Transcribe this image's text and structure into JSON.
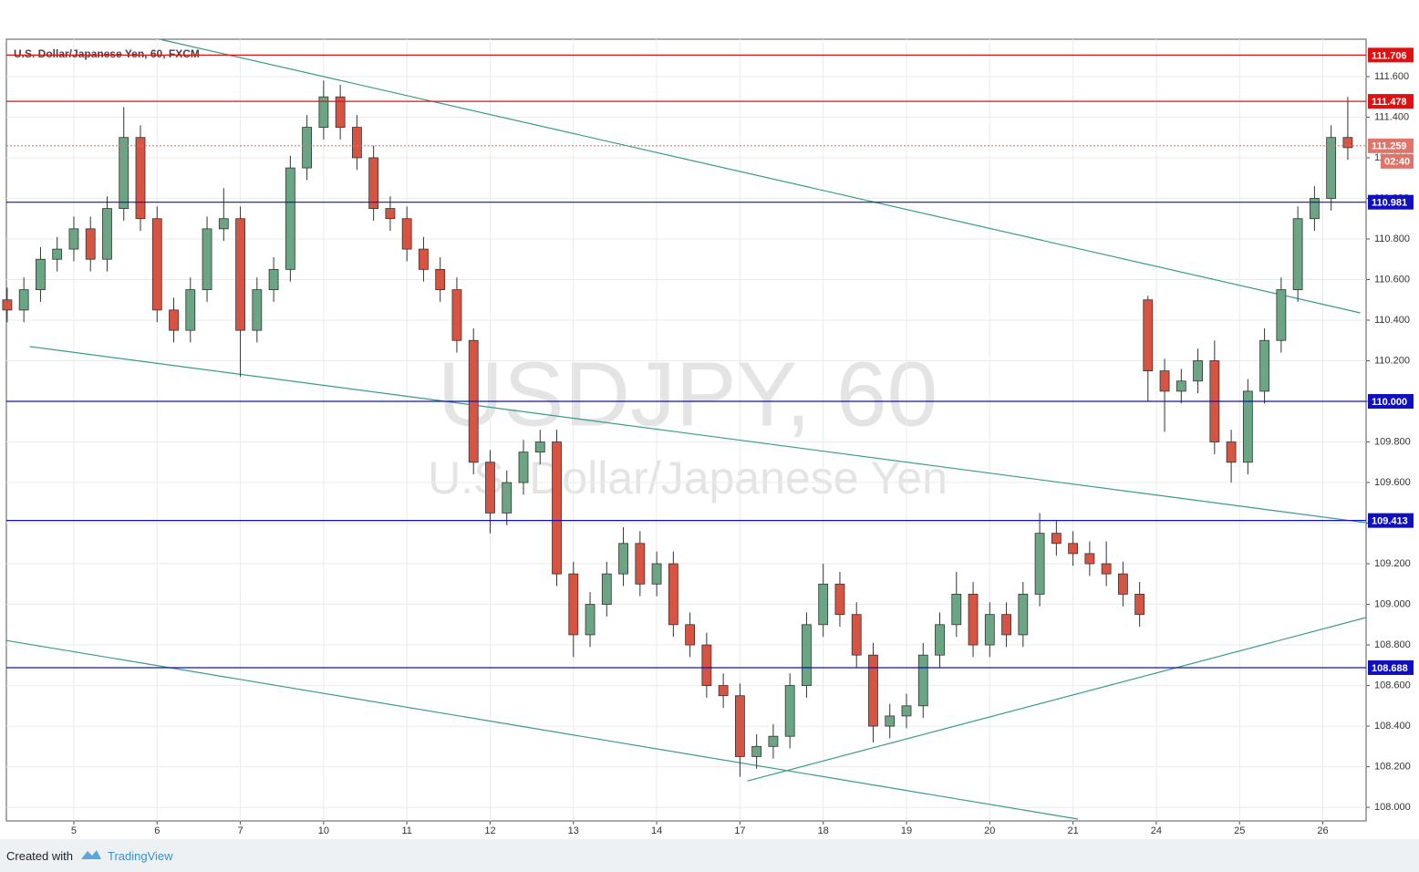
{
  "chart_data": {
    "type": "candlestick",
    "title": "U.S. Dollar/Japanese Yen, 60, FXCM",
    "watermark": "USDJPY, 60",
    "watermark_subtitle": "U.S. Dollar/Japanese Yen",
    "footer_text": "Created with",
    "footer_brand": "TradingView",
    "up_color": "#6ba583",
    "down_color": "#d75442",
    "grid": true,
    "xlim": [
      -0.81,
      15.52
    ],
    "ylim": [
      107.933,
      111.784
    ],
    "xticks": [
      {
        "value": 0,
        "label": "5"
      },
      {
        "value": 1,
        "label": "6"
      },
      {
        "value": 2,
        "label": "7"
      },
      {
        "value": 3,
        "label": "10"
      },
      {
        "value": 4,
        "label": "11"
      },
      {
        "value": 5,
        "label": "12"
      },
      {
        "value": 6,
        "label": "13"
      },
      {
        "value": 7,
        "label": "14"
      },
      {
        "value": 8,
        "label": "17"
      },
      {
        "value": 9,
        "label": "18"
      },
      {
        "value": 10,
        "label": "19"
      },
      {
        "value": 11,
        "label": "20"
      },
      {
        "value": 12,
        "label": "21"
      },
      {
        "value": 13,
        "label": "24"
      },
      {
        "value": 14,
        "label": "25"
      },
      {
        "value": 15,
        "label": "26"
      }
    ],
    "yticks": [
      {
        "value": 108.0,
        "label": "108.000"
      },
      {
        "value": 108.2,
        "label": "108.200"
      },
      {
        "value": 108.4,
        "label": "108.400"
      },
      {
        "value": 108.6,
        "label": "108.600"
      },
      {
        "value": 108.8,
        "label": "108.800"
      },
      {
        "value": 109.0,
        "label": "109.000"
      },
      {
        "value": 109.2,
        "label": "109.200"
      },
      {
        "value": 109.4,
        "label": "109.400"
      },
      {
        "value": 109.6,
        "label": "109.600"
      },
      {
        "value": 109.8,
        "label": "109.800"
      },
      {
        "value": 110.0,
        "label": "110.000"
      },
      {
        "value": 110.2,
        "label": "110.200"
      },
      {
        "value": 110.4,
        "label": "110.400"
      },
      {
        "value": 110.6,
        "label": "110.600"
      },
      {
        "value": 110.8,
        "label": "110.800"
      },
      {
        "value": 111.0,
        "label": "111.000"
      },
      {
        "value": 111.2,
        "label": "111.200"
      },
      {
        "value": 111.4,
        "label": "111.400"
      },
      {
        "value": 111.6,
        "label": "111.600"
      }
    ],
    "levels": [
      {
        "value": 111.706,
        "label": "111.706",
        "color": "#e01010",
        "style": "solid"
      },
      {
        "value": 111.478,
        "label": "111.478",
        "color": "#e01010",
        "style": "solid"
      },
      {
        "value": 111.259,
        "label": "111.259",
        "color": "#e0736a",
        "style": "dotted",
        "countdown": "02:40"
      },
      {
        "value": 110.981,
        "label": "110.981",
        "color": "#1010c0",
        "style": "solid"
      },
      {
        "value": 110.0,
        "label": "110.000",
        "color": "#1010c0",
        "style": "solid"
      },
      {
        "value": 109.413,
        "label": "109.413",
        "color": "#1010c0",
        "style": "solid"
      },
      {
        "value": 108.688,
        "label": "108.688",
        "color": "#1010c0",
        "style": "solid"
      }
    ],
    "trendlines": [
      {
        "x": [
          1.03,
          15.45
        ],
        "y": [
          111.784,
          110.436
        ],
        "color": "#3a9a8a"
      },
      {
        "x": [
          -0.53,
          15.52
        ],
        "y": [
          110.27,
          109.402
        ],
        "color": "#3a9a8a"
      },
      {
        "x": [
          -0.81,
          12.06
        ],
        "y": [
          108.822,
          107.942
        ],
        "color": "#3a9a8a"
      },
      {
        "x": [
          8.09,
          15.52
        ],
        "y": [
          108.13,
          108.935
        ],
        "color": "#3a9a8a"
      }
    ],
    "candles": {
      "x": [
        -0.8,
        -0.6,
        -0.4,
        -0.2,
        0,
        0.2,
        0.4,
        0.6,
        0.8,
        1,
        1.2,
        1.4,
        1.6,
        1.8,
        2,
        2.2,
        2.4,
        2.6,
        2.8,
        3,
        3.2,
        3.4,
        3.6,
        3.8,
        4,
        4.2,
        4.4,
        4.6,
        4.8,
        5,
        5.2,
        5.4,
        5.6,
        5.8,
        6,
        6.2,
        6.4,
        6.6,
        6.8,
        7,
        7.2,
        7.4,
        7.6,
        7.8,
        8,
        8.2,
        8.4,
        8.6,
        8.8,
        9,
        9.2,
        9.4,
        9.6,
        9.8,
        10,
        10.2,
        10.4,
        10.6,
        10.8,
        11,
        11.2,
        11.4,
        11.6,
        11.8,
        12,
        12.2,
        12.4,
        12.6,
        12.8,
        12.9,
        13.1,
        13.3,
        13.5,
        13.7,
        13.9,
        14.1,
        14.3,
        14.5,
        14.7,
        14.9,
        15.1,
        15.3
      ],
      "open": [
        110.5,
        110.45,
        110.55,
        110.7,
        110.75,
        110.85,
        110.7,
        110.95,
        111.3,
        110.9,
        110.45,
        110.35,
        110.55,
        110.85,
        110.9,
        110.35,
        110.55,
        110.65,
        111.15,
        111.35,
        111.5,
        111.35,
        111.2,
        110.95,
        110.9,
        110.75,
        110.65,
        110.55,
        110.3,
        109.7,
        109.45,
        109.6,
        109.75,
        109.8,
        109.15,
        108.85,
        109.0,
        109.15,
        109.3,
        109.1,
        109.2,
        108.9,
        108.8,
        108.6,
        108.55,
        108.25,
        108.3,
        108.35,
        108.6,
        108.9,
        109.1,
        108.95,
        108.75,
        108.4,
        108.45,
        108.5,
        108.75,
        108.9,
        109.05,
        108.8,
        108.95,
        108.85,
        109.05,
        109.35,
        109.3,
        109.25,
        109.2,
        109.15,
        109.05,
        110.5,
        110.15,
        110.05,
        110.1,
        110.2,
        109.8,
        109.7,
        110.05,
        110.3,
        110.55,
        110.9,
        111.0,
        111.3
      ],
      "high": [
        110.56,
        110.61,
        110.76,
        110.81,
        110.91,
        110.91,
        111.01,
        111.45,
        111.36,
        110.96,
        110.51,
        110.61,
        110.91,
        111.05,
        110.96,
        110.61,
        110.71,
        111.21,
        111.41,
        111.58,
        111.56,
        111.41,
        111.26,
        111.01,
        110.96,
        110.81,
        110.71,
        110.61,
        110.36,
        109.76,
        109.66,
        109.81,
        109.86,
        109.86,
        109.21,
        109.06,
        109.21,
        109.38,
        109.36,
        109.26,
        109.26,
        108.96,
        108.86,
        108.66,
        108.61,
        108.36,
        108.41,
        108.66,
        108.96,
        109.2,
        109.16,
        109.01,
        108.81,
        108.51,
        108.56,
        108.81,
        108.96,
        109.16,
        109.11,
        109.01,
        109.01,
        109.11,
        109.45,
        109.41,
        109.36,
        109.31,
        109.31,
        109.21,
        109.11,
        110.52,
        110.21,
        110.16,
        110.26,
        110.3,
        109.86,
        110.11,
        110.36,
        110.61,
        110.96,
        111.06,
        111.36,
        111.5
      ],
      "low": [
        110.39,
        110.39,
        110.49,
        110.64,
        110.69,
        110.64,
        110.64,
        110.89,
        110.84,
        110.39,
        110.29,
        110.29,
        110.49,
        110.79,
        110.12,
        110.29,
        110.49,
        110.59,
        111.09,
        111.29,
        111.29,
        111.14,
        110.89,
        110.84,
        110.69,
        110.59,
        110.49,
        110.24,
        109.64,
        109.35,
        109.39,
        109.54,
        109.69,
        109.09,
        108.74,
        108.79,
        108.94,
        109.09,
        109.04,
        109.04,
        108.84,
        108.74,
        108.54,
        108.49,
        108.15,
        108.19,
        108.24,
        108.29,
        108.54,
        108.84,
        108.89,
        108.69,
        108.32,
        108.34,
        108.39,
        108.44,
        108.69,
        108.84,
        108.74,
        108.74,
        108.79,
        108.79,
        108.99,
        109.24,
        109.19,
        109.14,
        109.09,
        108.99,
        108.89,
        110.0,
        109.85,
        109.99,
        110.04,
        109.74,
        109.6,
        109.64,
        109.99,
        110.24,
        110.49,
        110.84,
        110.94,
        111.19
      ],
      "close": [
        110.45,
        110.55,
        110.7,
        110.75,
        110.85,
        110.7,
        110.95,
        111.3,
        110.9,
        110.45,
        110.35,
        110.55,
        110.85,
        110.9,
        110.35,
        110.55,
        110.65,
        111.15,
        111.35,
        111.5,
        111.35,
        111.2,
        110.95,
        110.9,
        110.75,
        110.65,
        110.55,
        110.3,
        109.7,
        109.45,
        109.6,
        109.75,
        109.8,
        109.15,
        108.85,
        109.0,
        109.15,
        109.3,
        109.1,
        109.2,
        108.9,
        108.8,
        108.6,
        108.55,
        108.25,
        108.3,
        108.35,
        108.6,
        108.9,
        109.1,
        108.95,
        108.75,
        108.4,
        108.45,
        108.5,
        108.75,
        108.9,
        109.05,
        108.8,
        108.95,
        108.85,
        109.05,
        109.35,
        109.3,
        109.25,
        109.2,
        109.15,
        109.05,
        108.95,
        110.15,
        110.05,
        110.1,
        110.2,
        109.8,
        109.7,
        110.05,
        110.3,
        110.55,
        110.9,
        111.0,
        111.3,
        111.25
      ]
    }
  }
}
